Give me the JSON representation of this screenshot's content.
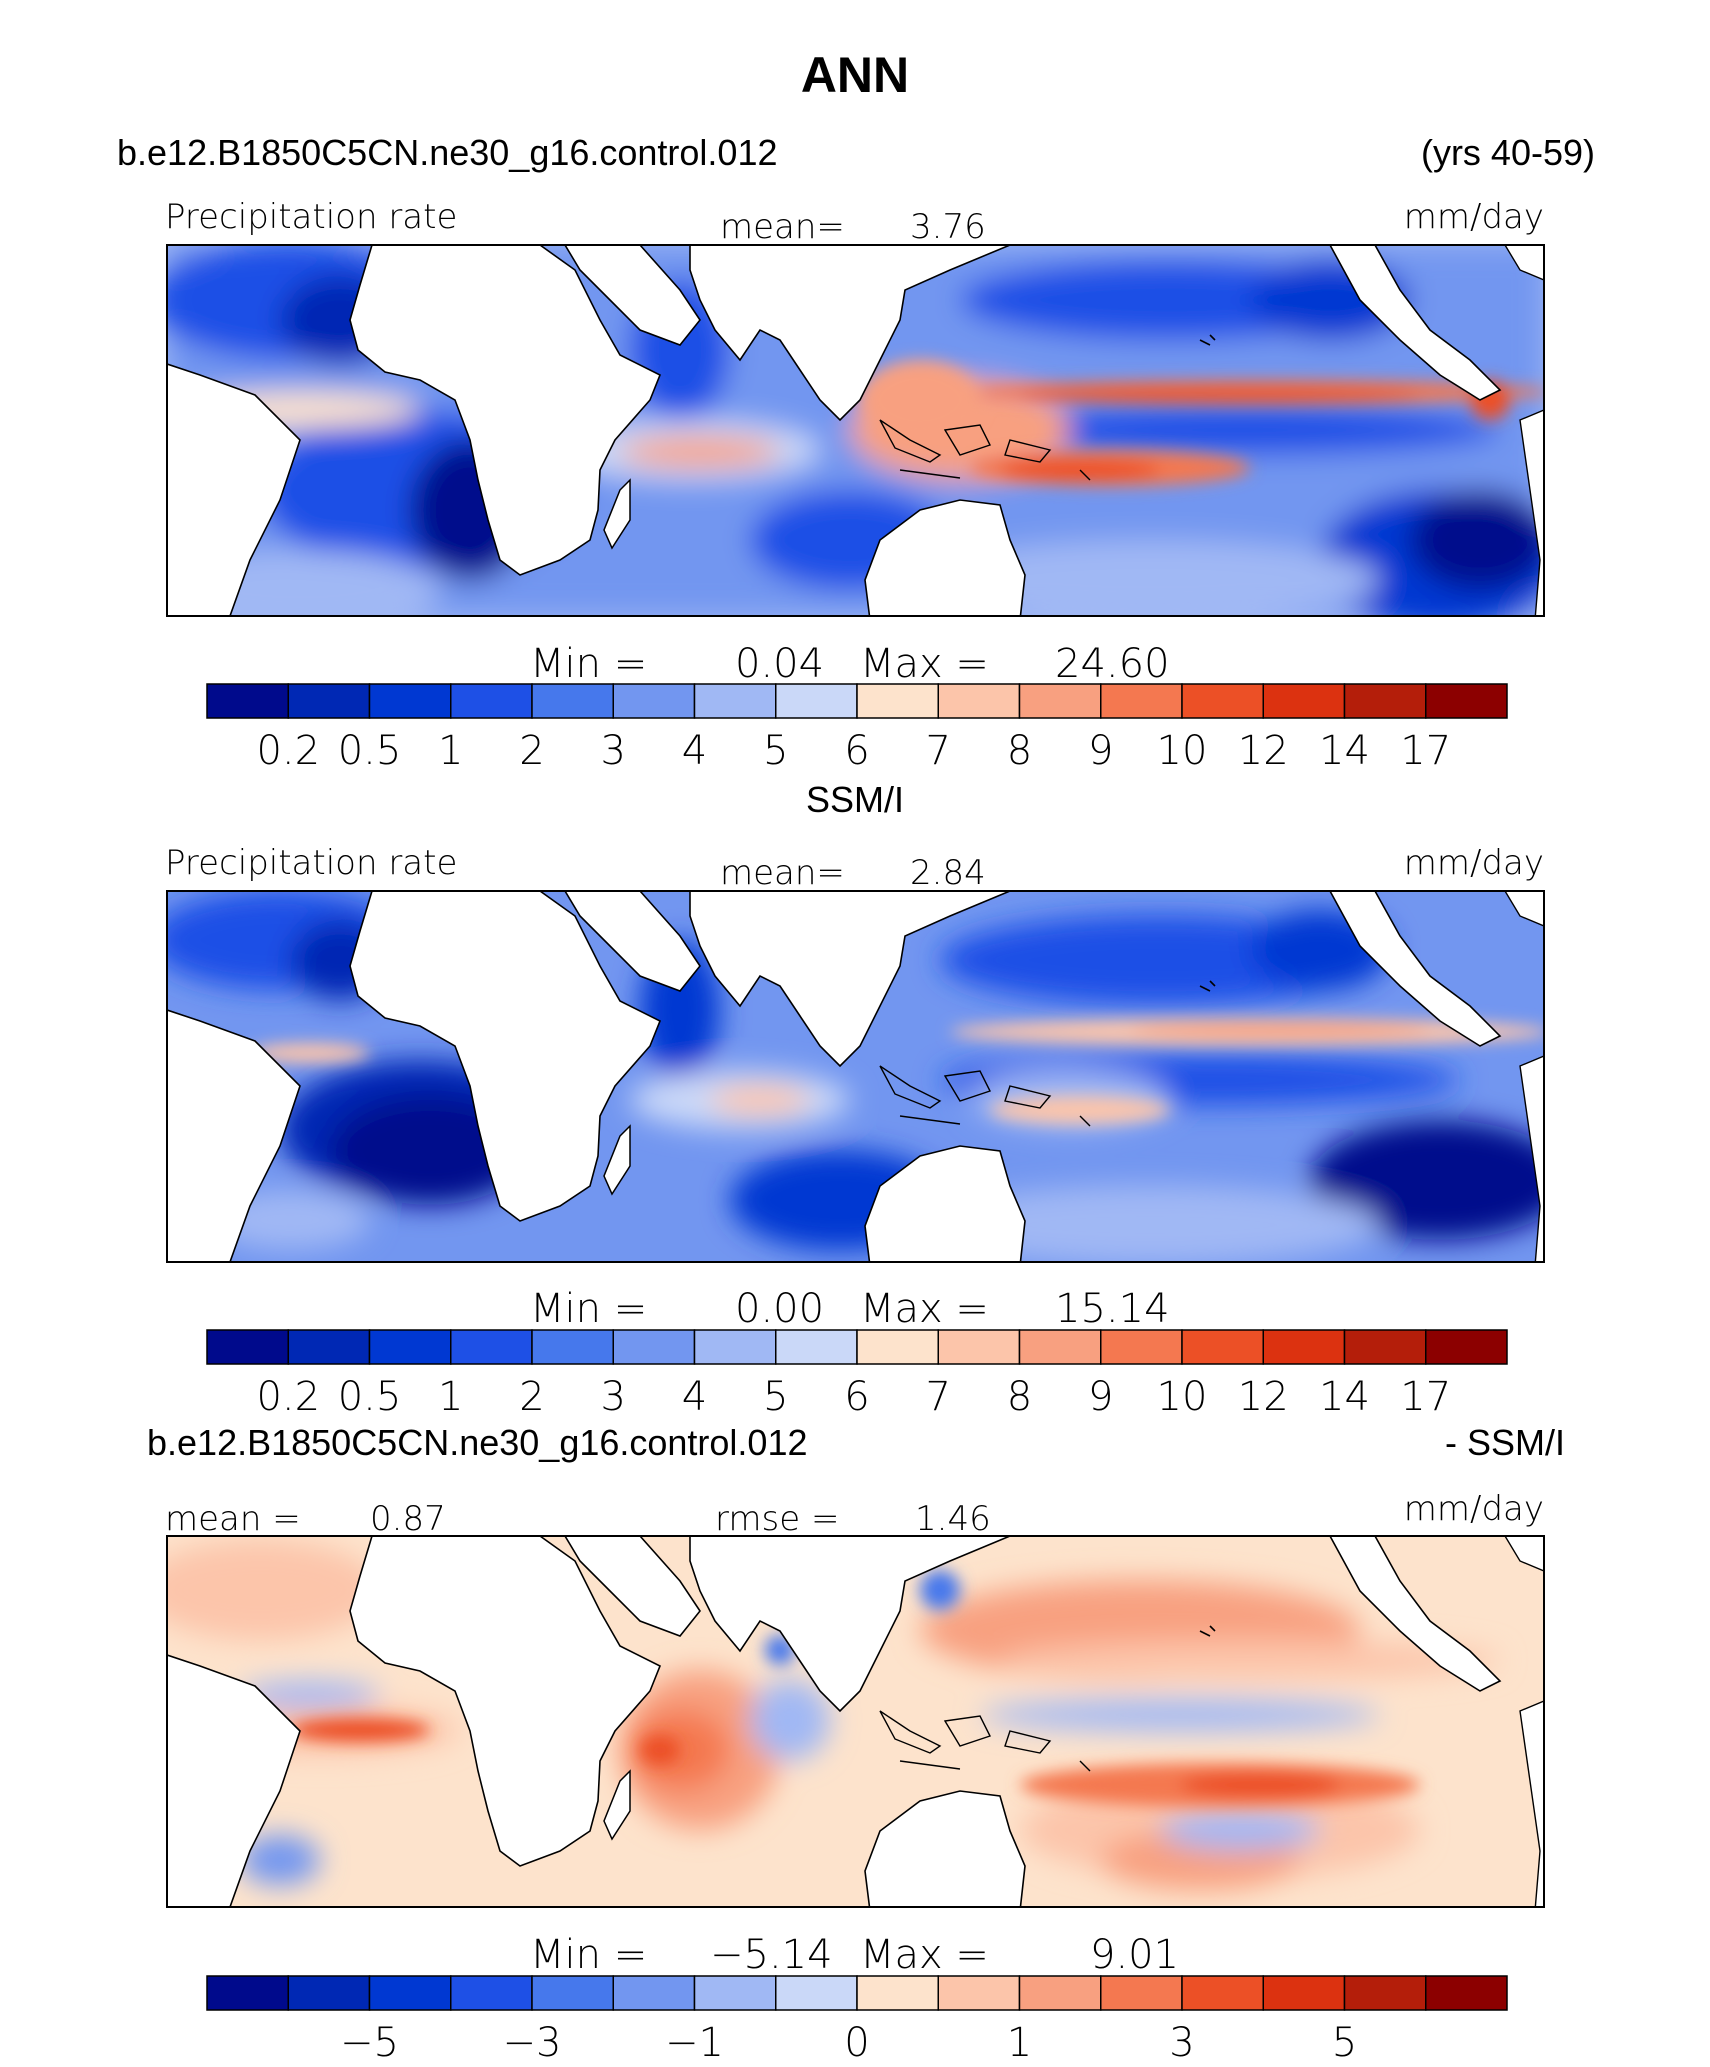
{
  "figure": {
    "title": "ANN",
    "case_name": "b.e12.B1850C5CN.ne30_g16.control.012",
    "years": "(yrs 40-59)",
    "obs_title": "SSM/I",
    "diff_case": "b.e12.B1850C5CN.ne30_g16.control.012",
    "diff_suffix": "- SSM/I"
  },
  "chart_data": [
    {
      "type": "heatmap",
      "panel": "model",
      "left_label": "Precipitation rate",
      "mid_label": "mean=",
      "mid_value": "3.76",
      "units": "mm/day",
      "min_label": "Min =",
      "min_value": "0.04",
      "max_label": "Max =",
      "max_value": "24.60",
      "mean": 3.76,
      "min": 0.04,
      "max": 24.6,
      "colorbar": {
        "colors": [
          "#000a8c",
          "#0028b4",
          "#0038d2",
          "#1e50e6",
          "#4678ec",
          "#7296f0",
          "#a0b8f4",
          "#cad8f8",
          "#fde3cc",
          "#fcc5aa",
          "#f8a080",
          "#f47850",
          "#ec5026",
          "#dc3210",
          "#b41e0a",
          "#8c0000"
        ],
        "ticks": [
          "0.2",
          "0.5",
          "1",
          "2",
          "3",
          "4",
          "5",
          "6",
          "7",
          "8",
          "9",
          "10",
          "12",
          "14",
          "17"
        ]
      }
    },
    {
      "type": "heatmap",
      "panel": "obs",
      "left_label": "Precipitation rate",
      "mid_label": "mean=",
      "mid_value": "2.84",
      "units": "mm/day",
      "min_label": "Min =",
      "min_value": "0.00",
      "max_label": "Max =",
      "max_value": "15.14",
      "mean": 2.84,
      "min": 0.0,
      "max": 15.14,
      "colorbar": {
        "colors": [
          "#000a8c",
          "#0028b4",
          "#0038d2",
          "#1e50e6",
          "#4678ec",
          "#7296f0",
          "#a0b8f4",
          "#cad8f8",
          "#fde3cc",
          "#fcc5aa",
          "#f8a080",
          "#f47850",
          "#ec5026",
          "#dc3210",
          "#b41e0a",
          "#8c0000"
        ],
        "ticks": [
          "0.2",
          "0.5",
          "1",
          "2",
          "3",
          "4",
          "5",
          "6",
          "7",
          "8",
          "9",
          "10",
          "12",
          "14",
          "17"
        ]
      }
    },
    {
      "type": "heatmap",
      "panel": "diff",
      "left_label": "mean =",
      "left_value": "0.87",
      "mid_label": "rmse =",
      "mid_value": "1.46",
      "units": "mm/day",
      "min_label": "Min =",
      "min_value": "−5.14",
      "max_label": "Max =",
      "max_value": "9.01",
      "mean": 0.87,
      "rmse": 1.46,
      "min": -5.14,
      "max": 9.01,
      "colorbar": {
        "colors": [
          "#000a8c",
          "#0028b4",
          "#0038d2",
          "#1e50e6",
          "#4678ec",
          "#7296f0",
          "#a0b8f4",
          "#cad8f8",
          "#fde3cc",
          "#fcc5aa",
          "#f8a080",
          "#f47850",
          "#ec5026",
          "#dc3210",
          "#b41e0a",
          "#8c0000"
        ],
        "ticks": [
          "−5",
          "−3",
          "−1",
          "0",
          "1",
          "3",
          "5"
        ]
      }
    }
  ]
}
